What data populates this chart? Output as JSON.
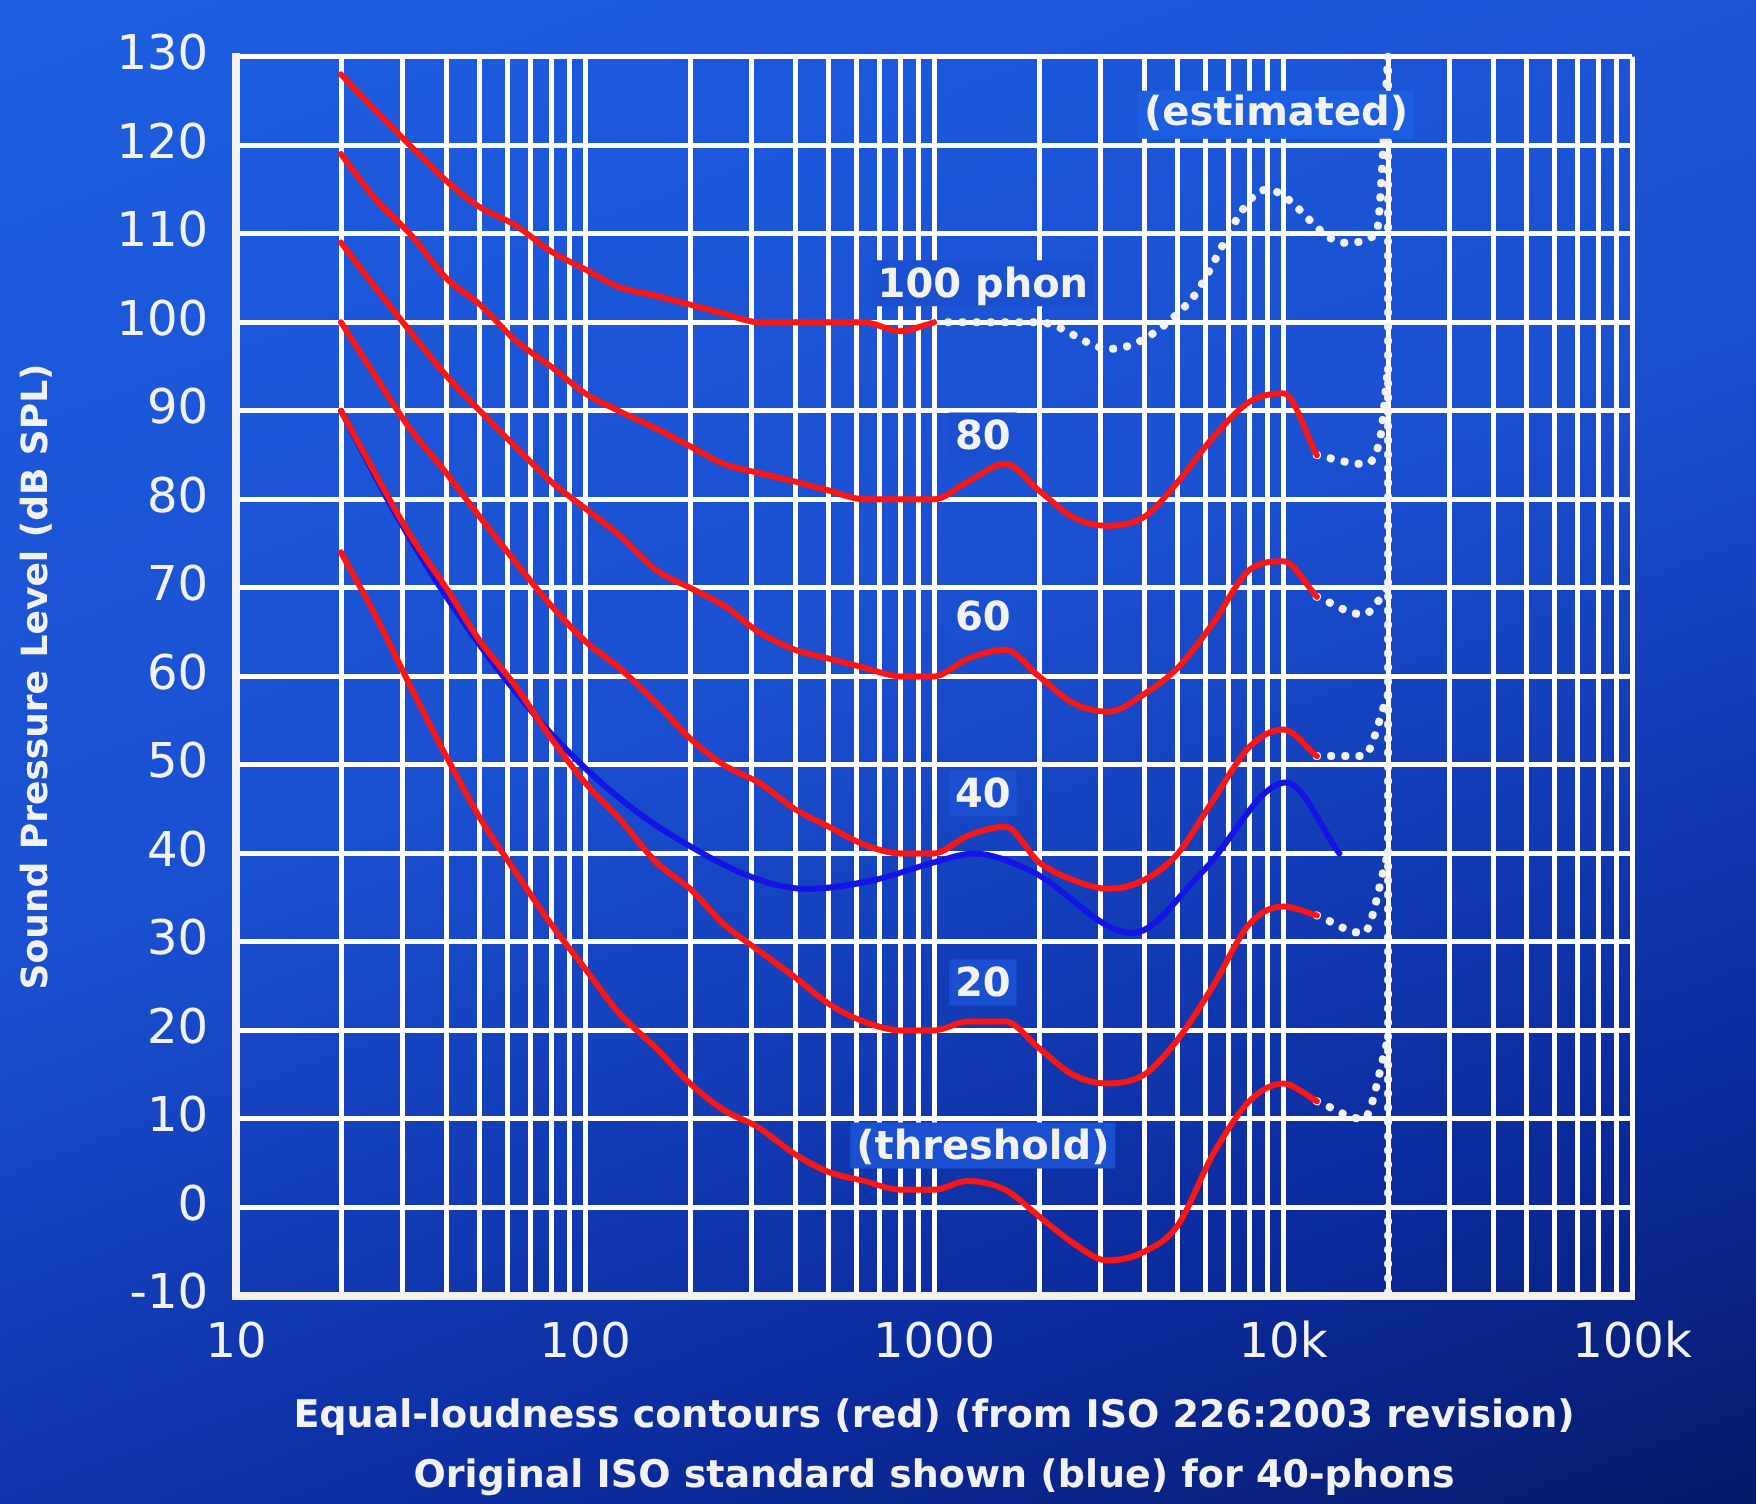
{
  "chart_data": {
    "type": "line",
    "log": "x",
    "xlabel": "Equal-loudness contours (red) (from ISO 226:2003 revision)",
    "ylabel": "Sound Pressure Level (dB SPL)",
    "xlim": [
      10,
      100000
    ],
    "ylim": [
      -10,
      130
    ],
    "xticks": [
      10,
      {
        "value": 20,
        "label": null
      },
      {
        "value": 30,
        "label": null
      },
      {
        "value": 40,
        "label": null
      },
      {
        "value": 50,
        "label": null
      },
      {
        "value": 60,
        "label": null
      },
      {
        "value": 70,
        "label": null
      },
      {
        "value": 80,
        "label": null
      },
      {
        "value": 90,
        "label": null
      },
      100,
      {
        "value": 200,
        "label": null
      },
      {
        "value": 300,
        "label": null
      },
      {
        "value": 400,
        "label": null
      },
      {
        "value": 500,
        "label": null
      },
      {
        "value": 600,
        "label": null
      },
      {
        "value": 700,
        "label": null
      },
      {
        "value": 800,
        "label": null
      },
      {
        "value": 900,
        "label": null
      },
      1000,
      {
        "value": 2000,
        "label": null
      },
      {
        "value": 3000,
        "label": null
      },
      {
        "value": 4000,
        "label": null
      },
      {
        "value": 5000,
        "label": null
      },
      {
        "value": 6000,
        "label": null
      },
      {
        "value": 7000,
        "label": null
      },
      {
        "value": 8000,
        "label": null
      },
      {
        "value": 9000,
        "label": null
      },
      {
        "value": 10000,
        "label": "10k"
      },
      {
        "value": 20000,
        "label": null
      },
      {
        "value": 30000,
        "label": null
      },
      {
        "value": 40000,
        "label": null
      },
      {
        "value": 50000,
        "label": null
      },
      {
        "value": 60000,
        "label": null
      },
      {
        "value": 70000,
        "label": null
      },
      {
        "value": 80000,
        "label": null
      },
      {
        "value": 90000,
        "label": null
      },
      {
        "value": 100000,
        "label": "100k"
      }
    ],
    "yticks": [
      -10,
      0,
      10,
      20,
      30,
      40,
      50,
      60,
      70,
      80,
      90,
      100,
      110,
      120,
      130
    ],
    "grid": true,
    "series": [
      {
        "name": "100 phon",
        "color": "#ff1414",
        "x": [
          20,
          25,
          31.5,
          40,
          50,
          63,
          80,
          100,
          125,
          160,
          200,
          250,
          315,
          400,
          500,
          630,
          800,
          1000
        ],
        "values": [
          128,
          124,
          120,
          116,
          113,
          111,
          108,
          106,
          104,
          103,
          102,
          101,
          100,
          100,
          100,
          100,
          99,
          100
        ]
      },
      {
        "name": "80",
        "color": "#ff1414",
        "x": [
          20,
          25,
          31.5,
          40,
          50,
          63,
          80,
          100,
          125,
          160,
          200,
          250,
          315,
          400,
          500,
          630,
          800,
          1000,
          1250,
          1600,
          2000,
          2500,
          3150,
          4000,
          5000,
          6300,
          8000,
          10000,
          12500
        ],
        "values": [
          119,
          114,
          110,
          105,
          102,
          98,
          95,
          92,
          90,
          88,
          86,
          84,
          83,
          82,
          81,
          80,
          80,
          80,
          82,
          84,
          81,
          78,
          77,
          78,
          82,
          87,
          91,
          92,
          85
        ]
      },
      {
        "name": "60",
        "color": "#ff1414",
        "x": [
          20,
          25,
          31.5,
          40,
          50,
          63,
          80,
          100,
          125,
          160,
          200,
          250,
          315,
          400,
          500,
          630,
          800,
          1000,
          1250,
          1600,
          2000,
          2500,
          3150,
          4000,
          5000,
          6300,
          8000,
          10000,
          12500
        ],
        "values": [
          109,
          104,
          99,
          94,
          90,
          86,
          82,
          79,
          76,
          72,
          70,
          68,
          65,
          63,
          62,
          61,
          60,
          60,
          62,
          63,
          60,
          57,
          56,
          58,
          61,
          66,
          72,
          73,
          69
        ]
      },
      {
        "name": "40",
        "color": "#ff1414",
        "x": [
          20,
          25,
          31.5,
          40,
          50,
          63,
          80,
          100,
          125,
          160,
          200,
          250,
          315,
          400,
          500,
          630,
          800,
          1000,
          1250,
          1600,
          2000,
          2500,
          3150,
          4000,
          5000,
          6300,
          8000,
          10000,
          12500
        ],
        "values": [
          100,
          94,
          88,
          83,
          78,
          73,
          68,
          64,
          61,
          57,
          53,
          50,
          48,
          45,
          43,
          41,
          40,
          40,
          42,
          43,
          39,
          37,
          36,
          37,
          40,
          46,
          52,
          54,
          51
        ]
      },
      {
        "name": "20",
        "color": "#ff1414",
        "x": [
          20,
          25,
          31.5,
          40,
          50,
          63,
          80,
          100,
          125,
          160,
          200,
          250,
          315,
          400,
          500,
          630,
          800,
          1000,
          1250,
          1600,
          2000,
          2500,
          3150,
          4000,
          5000,
          6300,
          8000,
          10000,
          12500
        ],
        "values": [
          90,
          83,
          76,
          70,
          64,
          59,
          53,
          48,
          44,
          39,
          36,
          32,
          29,
          26,
          23,
          21,
          20,
          20,
          21,
          21,
          18,
          15,
          14,
          15,
          19,
          25,
          32,
          34,
          33
        ]
      },
      {
        "name": "(threshold)",
        "color": "#ff1414",
        "x": [
          20,
          25,
          31.5,
          40,
          50,
          63,
          80,
          100,
          125,
          160,
          200,
          250,
          315,
          400,
          500,
          630,
          800,
          1000,
          1250,
          1600,
          2000,
          2500,
          3150,
          4000,
          5000,
          6300,
          8000,
          10000,
          12500
        ],
        "values": [
          74,
          67,
          59,
          51,
          44,
          38,
          32,
          27,
          22,
          18,
          14,
          11,
          9,
          6,
          4,
          3,
          2,
          2,
          3,
          2,
          -1,
          -4,
          -6,
          -5,
          -2,
          6,
          12,
          14,
          12
        ]
      },
      {
        "color": "#1414e6",
        "x": [
          20,
          29,
          47,
          87,
          178,
          436,
          676,
          1000,
          1300,
          1900,
          3700,
          5900,
          10200,
          14500
        ],
        "values": [
          90,
          78,
          65,
          52,
          42,
          36,
          37,
          39,
          40,
          38,
          31,
          38,
          48,
          40
        ]
      },
      {
        "color": "#f2f2f2",
        "line_style": "dotted",
        "x": [
          1000,
          2000,
          3200,
          5300,
          9000,
          15000,
          18500,
          20000
        ],
        "values": [
          100,
          100,
          97,
          102,
          115,
          109,
          110,
          130
        ]
      },
      {
        "color": "#f2f2f2",
        "line_style": "dotted",
        "x": [
          12500,
          17000,
          19000,
          20000
        ],
        "values": [
          85,
          84,
          87,
          95
        ]
      },
      {
        "color": "#f2f2f2",
        "line_style": "dotted",
        "x": [
          12500,
          17000,
          20000
        ],
        "values": [
          69,
          67,
          70
        ]
      },
      {
        "color": "#f2f2f2",
        "line_style": "dotted",
        "x": [
          12500,
          17000,
          20000
        ],
        "values": [
          51,
          51,
          58
        ]
      },
      {
        "color": "#f2f2f2",
        "line_style": "dotted",
        "x": [
          12500,
          17000,
          20000
        ],
        "values": [
          33,
          31,
          40
        ]
      },
      {
        "color": "#f2f2f2",
        "line_style": "dotted",
        "x": [
          12500,
          17000,
          20000
        ],
        "values": [
          12,
          10,
          19
        ]
      }
    ],
    "ref_lines": [
      {
        "axis": "x",
        "value": 20000,
        "color": "#f2f2f2",
        "line_style": "dotted"
      }
    ],
    "annotations": [
      "(estimated)",
      "Original ISO standard shown (blue) for 40-phons"
    ]
  }
}
